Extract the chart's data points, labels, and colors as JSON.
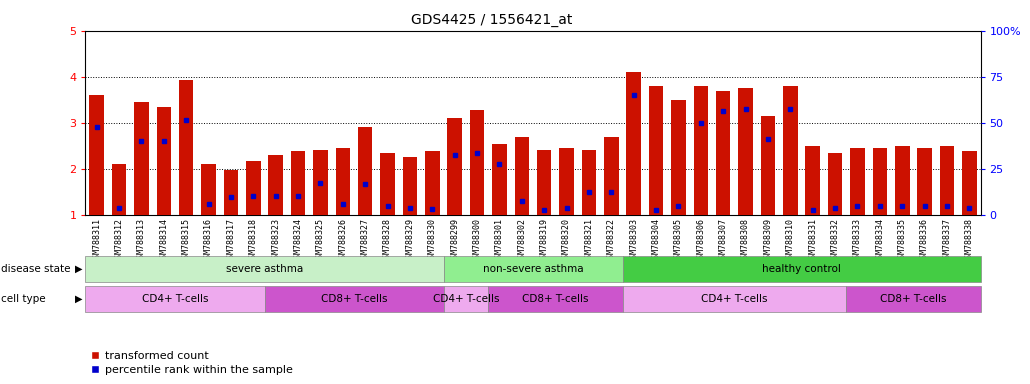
{
  "title": "GDS4425 / 1556421_at",
  "samples": [
    "GSM788311",
    "GSM788312",
    "GSM788313",
    "GSM788314",
    "GSM788315",
    "GSM788316",
    "GSM788317",
    "GSM788318",
    "GSM788323",
    "GSM788324",
    "GSM788325",
    "GSM788326",
    "GSM788327",
    "GSM788328",
    "GSM788329",
    "GSM788330",
    "GSM788299",
    "GSM788300",
    "GSM788301",
    "GSM788302",
    "GSM788319",
    "GSM788320",
    "GSM788321",
    "GSM788322",
    "GSM788303",
    "GSM788304",
    "GSM788305",
    "GSM788306",
    "GSM788307",
    "GSM788308",
    "GSM788309",
    "GSM788310",
    "GSM788331",
    "GSM788332",
    "GSM788333",
    "GSM788334",
    "GSM788335",
    "GSM788336",
    "GSM788337",
    "GSM788338"
  ],
  "bar_heights": [
    3.6,
    2.1,
    3.45,
    3.35,
    3.92,
    2.1,
    1.97,
    2.17,
    2.3,
    2.38,
    2.42,
    2.45,
    2.9,
    2.35,
    2.25,
    2.4,
    3.1,
    3.28,
    2.55,
    2.7,
    2.42,
    2.45,
    2.42,
    2.7,
    4.1,
    3.8,
    3.5,
    3.8,
    3.7,
    3.75,
    3.15,
    3.8,
    2.5,
    2.35,
    2.45,
    2.45,
    2.5,
    2.45,
    2.5,
    2.4
  ],
  "blue_marker_pos": [
    2.9,
    1.15,
    2.6,
    2.6,
    3.07,
    1.25,
    1.4,
    1.42,
    1.42,
    1.42,
    1.7,
    1.25,
    1.68,
    1.2,
    1.15,
    1.13,
    2.3,
    2.35,
    2.1,
    1.3,
    1.12,
    1.15,
    1.5,
    1.5,
    3.6,
    1.1,
    1.2,
    3.0,
    3.25,
    3.3,
    2.65,
    3.3,
    1.1,
    1.15,
    1.2,
    1.2,
    1.2,
    1.2,
    1.2,
    1.15
  ],
  "disease_state_groups": [
    {
      "label": "severe asthma",
      "start": 0,
      "end": 16,
      "color": "#c8f0c8"
    },
    {
      "label": "non-severe asthma",
      "start": 16,
      "end": 24,
      "color": "#90ee90"
    },
    {
      "label": "healthy control",
      "start": 24,
      "end": 40,
      "color": "#44cc44"
    }
  ],
  "cell_type_groups": [
    {
      "label": "CD4+ T-cells",
      "start": 0,
      "end": 8,
      "color": "#eeaaee"
    },
    {
      "label": "CD8+ T-cells",
      "start": 8,
      "end": 16,
      "color": "#cc55cc"
    },
    {
      "label": "CD4+ T-cells",
      "start": 16,
      "end": 18,
      "color": "#eeaaee"
    },
    {
      "label": "CD8+ T-cells",
      "start": 18,
      "end": 24,
      "color": "#cc55cc"
    },
    {
      "label": "CD4+ T-cells",
      "start": 24,
      "end": 34,
      "color": "#eeaaee"
    },
    {
      "label": "CD8+ T-cells",
      "start": 34,
      "end": 40,
      "color": "#cc55cc"
    }
  ],
  "ylim": [
    1.0,
    5.0
  ],
  "yticks": [
    1,
    2,
    3,
    4,
    5
  ],
  "y2ticks": [
    0,
    25,
    50,
    75,
    100
  ],
  "y2ticklabels": [
    "0",
    "25",
    "50",
    "75",
    "100%"
  ],
  "bar_color": "#cc1100",
  "blue_color": "#0000cc",
  "bar_width": 0.65,
  "background_color": "#ffffff",
  "title_fontsize": 10,
  "tick_fontsize": 6,
  "annotation_fontsize": 7.5,
  "legend_fontsize": 8
}
